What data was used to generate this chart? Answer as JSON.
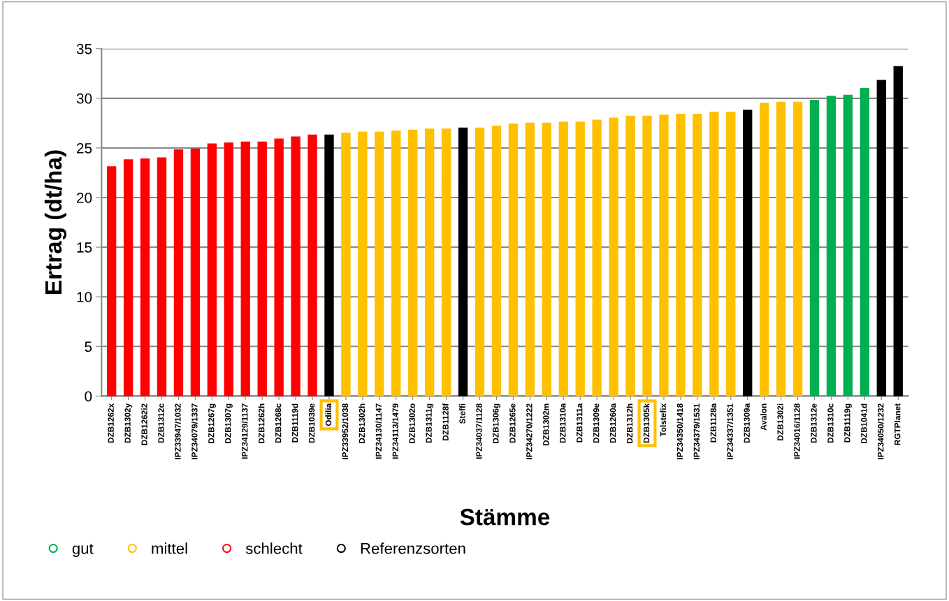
{
  "chart_data": {
    "type": "bar",
    "xlabel": "Stämme",
    "ylabel": "Ertrag (dt/ha)",
    "categories": [
      "DZB1262x",
      "DZB1302y",
      "DZB1262i2",
      "DZB1312c",
      "IPZ33947/1032",
      "IPZ34079/1337",
      "DZB1267g",
      "DZB1307g",
      "IPZ34129/1137",
      "DZB1262h",
      "DZB1268c",
      "DZB1119d",
      "DZB1039e",
      "Odilia",
      "IPZ33952/1038",
      "DZB1302h",
      "IPZ34130/1147",
      "IPZ34113/1479",
      "DZB1302o",
      "DZB1311g",
      "DZB1128f",
      "Steffi",
      "IPZ34037/1128",
      "DZB1306g",
      "DZB1265e",
      "IPZ34270/1222",
      "DZB1302m",
      "DZB1310a",
      "DZB1311a",
      "DZB1309e",
      "DZB1260a",
      "DZB1312h",
      "DZB1305k",
      "Tolstefix",
      "IPZ34350/1418",
      "IPZ34379/1531",
      "DZB1128a",
      "IPZ34337/1351",
      "DZB1309a",
      "Avalon",
      "DZB1302i",
      "IPZ34016/1128",
      "DZB1312e",
      "DZB1310c",
      "DZB1119g",
      "DZB1041d",
      "IPZ34050/1232",
      "RGTPlanet"
    ],
    "series": [
      {
        "name": "gut",
        "color": "#00b050",
        "values": [
          null,
          null,
          null,
          null,
          null,
          null,
          null,
          null,
          null,
          null,
          null,
          null,
          null,
          null,
          null,
          null,
          null,
          null,
          null,
          null,
          null,
          null,
          null,
          null,
          null,
          null,
          null,
          null,
          null,
          null,
          null,
          null,
          null,
          null,
          null,
          null,
          null,
          null,
          null,
          null,
          null,
          null,
          29.8,
          30.2,
          30.3,
          31.0,
          null,
          null
        ]
      },
      {
        "name": "mittel",
        "color": "#ffc000",
        "values": [
          null,
          null,
          null,
          null,
          null,
          null,
          null,
          null,
          null,
          null,
          null,
          null,
          null,
          null,
          26.5,
          26.6,
          26.6,
          26.7,
          26.8,
          26.9,
          26.9,
          null,
          27.0,
          27.2,
          27.4,
          27.5,
          27.5,
          27.6,
          27.6,
          27.8,
          28.0,
          28.2,
          28.2,
          28.3,
          28.4,
          28.4,
          28.6,
          28.6,
          null,
          29.5,
          29.6,
          29.6,
          null,
          null,
          null,
          null,
          null,
          null
        ]
      },
      {
        "name": "schlecht",
        "color": "#ff0000",
        "values": [
          23.1,
          23.8,
          23.9,
          24.0,
          24.8,
          24.9,
          25.4,
          25.5,
          25.6,
          25.6,
          25.9,
          26.1,
          26.3,
          null,
          null,
          null,
          null,
          null,
          null,
          null,
          null,
          null,
          null,
          null,
          null,
          null,
          null,
          null,
          null,
          null,
          null,
          null,
          null,
          null,
          null,
          null,
          null,
          null,
          null,
          null,
          null,
          null,
          null,
          null,
          null,
          null,
          null,
          null
        ]
      },
      {
        "name": "Referenzsorten",
        "color": "#000000",
        "values": [
          null,
          null,
          null,
          null,
          null,
          null,
          null,
          null,
          null,
          null,
          null,
          null,
          null,
          26.3,
          null,
          null,
          null,
          null,
          null,
          null,
          null,
          27.0,
          null,
          null,
          null,
          null,
          null,
          null,
          null,
          null,
          null,
          null,
          null,
          null,
          null,
          null,
          null,
          null,
          28.8,
          null,
          null,
          null,
          null,
          null,
          null,
          null,
          31.8,
          33.2
        ]
      }
    ],
    "ylim": [
      0,
      35
    ],
    "yticks": [
      0,
      5,
      10,
      15,
      20,
      25,
      30,
      35
    ],
    "grid": "y",
    "legend": "bottom left"
  }
}
